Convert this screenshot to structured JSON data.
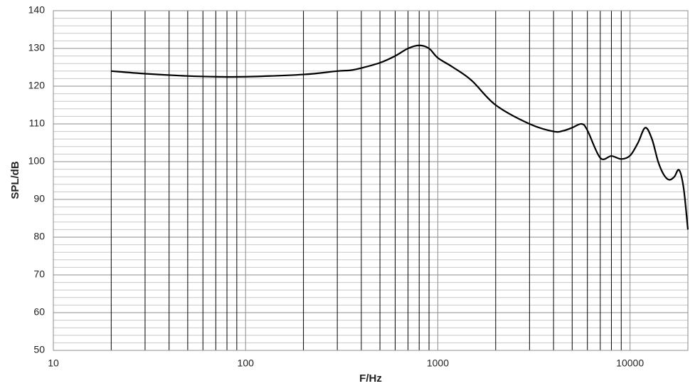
{
  "chart_data": {
    "type": "line",
    "xlabel": "F/Hz",
    "ylabel": "SPL/dB",
    "x": [
      20,
      30,
      50,
      70,
      100,
      200,
      300,
      350,
      400,
      500,
      600,
      700,
      800,
      900,
      1000,
      1200,
      1500,
      2000,
      3000,
      4000,
      4500,
      5000,
      5600,
      6000,
      7000,
      8000,
      9000,
      10000,
      11000,
      12000,
      13000,
      14000,
      15000,
      16000,
      17000,
      18000,
      19000,
      20000
    ],
    "series": [
      {
        "name": "SPL",
        "color": "#000000",
        "values": [
          124,
          123.3,
          122.7,
          122.5,
          122.5,
          123.1,
          124,
          124.2,
          124.8,
          126.2,
          128,
          130,
          130.8,
          130,
          127.5,
          125,
          121.5,
          115,
          110,
          108,
          108.2,
          109,
          110,
          108.3,
          101,
          101.5,
          100.7,
          101.6,
          105,
          109,
          106,
          100,
          96.5,
          95.2,
          96,
          97.8,
          93,
          82
        ]
      }
    ],
    "xscale": "log",
    "xlim": [
      10,
      20000
    ],
    "xticks": [
      10,
      100,
      1000,
      10000
    ],
    "xminor": [
      20,
      30,
      40,
      50,
      60,
      70,
      80,
      90,
      200,
      300,
      400,
      500,
      600,
      700,
      800,
      900,
      2000,
      3000,
      4000,
      5000,
      6000,
      7000,
      8000,
      9000
    ],
    "ylim": [
      50,
      140
    ],
    "yticks": [
      50,
      60,
      70,
      80,
      90,
      100,
      110,
      120,
      130,
      140
    ],
    "yminor": [
      52,
      54,
      56,
      58,
      62,
      64,
      66,
      68,
      72,
      74,
      76,
      78,
      82,
      84,
      86,
      88,
      92,
      94,
      96,
      98,
      102,
      104,
      106,
      108,
      112,
      114,
      116,
      118,
      122,
      124,
      126,
      128,
      132,
      134,
      136,
      138
    ],
    "grid": true
  }
}
